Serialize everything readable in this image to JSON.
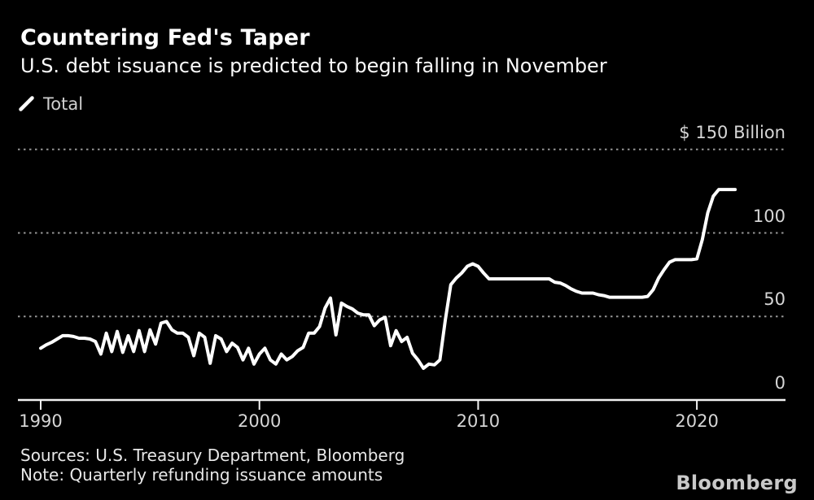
{
  "header": {
    "title": "Countering Fed's Taper",
    "subtitle": "U.S. debt issuance is predicted to begin falling in November"
  },
  "legend": {
    "label": "Total",
    "marker_icon": "diagonal-line-marker",
    "marker_color": "#ffffff"
  },
  "footer": {
    "sources": "Sources: U.S. Treasury Department, Bloomberg",
    "note": "Note: Quarterly refunding issuance amounts",
    "brand": "Bloomberg"
  },
  "colors": {
    "background": "#000000",
    "line": "#ffffff",
    "gridline": "#969696",
    "baseline": "#f2f2f2",
    "axis_text": "#d6d6d6"
  },
  "chart_data": {
    "type": "line",
    "title": "Countering Fed's Taper",
    "subtitle": "U.S. debt issuance is predicted to begin falling in November",
    "unit_label": "$ 150 Billion",
    "grid": "dotted horizontal gridlines at 150/100/50, solid baseline at 0",
    "legend_position": "top-left",
    "xlim": [
      1989.0,
      2023.2
    ],
    "ylim": [
      0,
      150
    ],
    "x_ticks": [
      {
        "v": 1990,
        "label": "1990"
      },
      {
        "v": 2000,
        "label": "2000"
      },
      {
        "v": 2010,
        "label": "2010"
      },
      {
        "v": 2020,
        "label": "2020"
      }
    ],
    "y_axis": [
      {
        "v": 150,
        "label": "$ 150 Billion"
      },
      {
        "v": 100,
        "label": "100"
      },
      {
        "v": 50,
        "label": "50"
      },
      {
        "v": 0,
        "label": "0"
      }
    ],
    "frequency": "quarterly",
    "x_start": 1990.0,
    "x_step": 0.25,
    "x_end": 2021.75,
    "series": [
      {
        "name": "Total",
        "color": "#ffffff",
        "values": [
          31,
          33,
          34.5,
          36.5,
          38.5,
          38.5,
          38,
          37,
          37,
          36.5,
          35,
          27.5,
          40,
          29,
          41,
          28.5,
          38.5,
          29,
          41.5,
          29,
          42,
          33.5,
          46,
          47,
          42,
          40,
          40,
          37.5,
          26.5,
          40,
          37.5,
          22,
          38.5,
          36.5,
          29,
          34,
          31.5,
          24,
          31,
          21.5,
          27.5,
          31,
          24,
          21.5,
          27.5,
          24,
          26,
          29.5,
          31.5,
          40,
          40,
          44,
          55,
          61,
          39,
          58,
          56,
          54.5,
          52,
          51,
          51,
          44.5,
          48,
          49.5,
          32.5,
          41.5,
          35,
          37.5,
          28,
          24,
          19,
          21.5,
          21,
          24,
          48,
          69,
          73,
          76,
          80,
          81.5,
          80,
          76,
          72.5,
          72.5,
          72.5,
          72.5,
          72.5,
          72.5,
          72.5,
          72.5,
          72.5,
          72.5,
          72.5,
          72.5,
          70.5,
          70,
          68.5,
          66.5,
          65,
          64,
          64,
          64,
          63,
          62.5,
          61.5,
          61.5,
          61.5,
          61.5,
          61.5,
          61.5,
          61.5,
          62,
          66,
          73,
          78,
          82.5,
          84,
          84,
          84,
          84,
          84.5,
          96,
          112,
          122,
          126,
          126,
          126,
          126
        ]
      }
    ]
  }
}
